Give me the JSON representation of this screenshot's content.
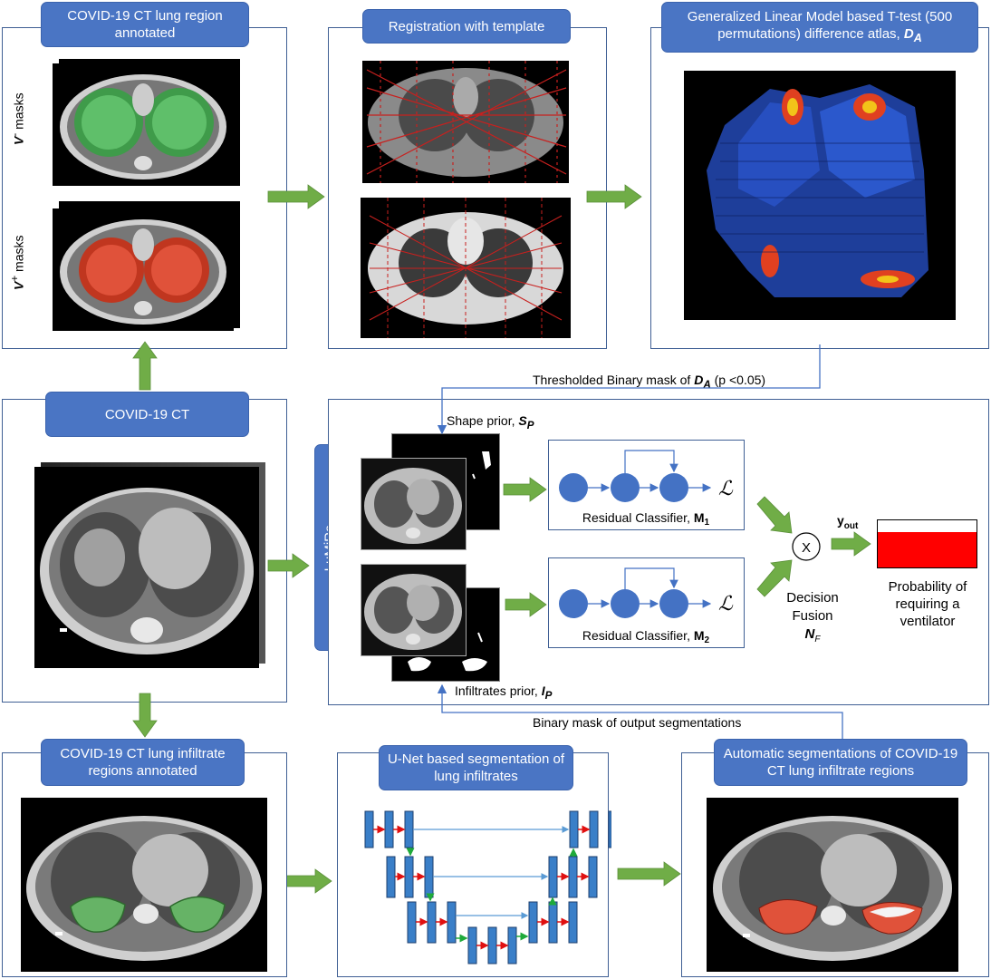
{
  "panels": {
    "annotated_lung": {
      "title": "COVID-19 CT lung region annotated",
      "v_minus": "V",
      "v_minus_sup": "-",
      "v_plus": "V",
      "v_plus_sup": "+",
      "masks": "masks"
    },
    "registration": {
      "title": "Registration with template"
    },
    "glm": {
      "title_line1": "Generalized Linear Model based T-test (500",
      "title_line2": "permutations) difference atlas, ",
      "title_sym": "D",
      "title_sub": "A"
    },
    "covid_ct": {
      "title": "COVID-19 CT"
    },
    "lumira": {
      "label": "LuMiRa"
    },
    "infiltrate_annotated": {
      "title": "COVID-19 CT lung infiltrate regions annotated"
    },
    "unet": {
      "title": "U-Net based segmentation of lung infiltrates"
    },
    "auto_seg": {
      "title": "Automatic segmentations of COVID-19 CT lung infiltrate regions"
    }
  },
  "labels": {
    "thresholded_pre": "Thresholded Binary mask of ",
    "thresholded_sym": "D",
    "thresholded_sub": "A",
    "thresholded_post": " (p <0.05)",
    "shape_prior": "Shape prior, ",
    "shape_sym": "S",
    "shape_sub": "P",
    "infiltrates_prior": "Infiltrates prior, ",
    "infiltrates_sym": "I",
    "infiltrates_sub": "P",
    "binary_mask_output": "Binary mask of output segmentations",
    "classifier1": "Residual Classifier, ",
    "classifier1_sym": "M",
    "classifier1_sub": "1",
    "classifier2": "Residual Classifier, ",
    "classifier2_sym": "M",
    "classifier2_sub": "2",
    "loss": "ℒ",
    "fusion_op": "X",
    "decision_fusion_1": "Decision",
    "decision_fusion_2": "Fusion",
    "nf_sym": "N",
    "nf_sub": "F",
    "y_out_sym": "y",
    "y_out_sub": "out",
    "probability_1": "Probability of",
    "probability_2": "requiring a",
    "probability_3": "ventilator"
  },
  "colors": {
    "panel_border": "#3f5f94",
    "tag_fill": "#4a75c4",
    "arrow_green": "#70ad47",
    "node_blue": "#4472c4",
    "mask_green": "#66b366",
    "mask_red": "#d9442b",
    "prob_red": "#ff0000"
  },
  "probability_bar": {
    "filled_fraction": 0.75
  }
}
